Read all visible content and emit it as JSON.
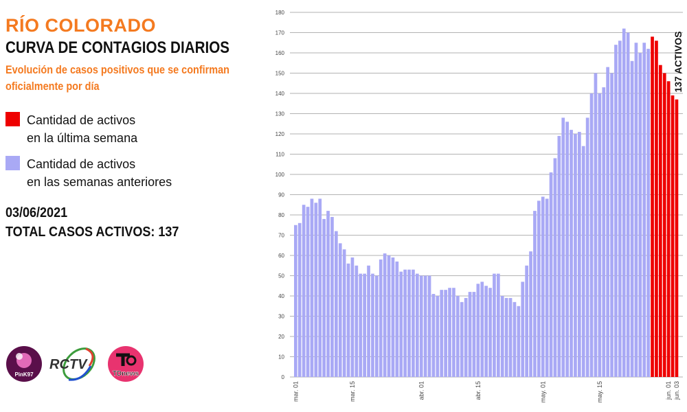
{
  "header": {
    "region": "RÍO COLORADO",
    "title": "CURVA DE CONTAGIOS DIARIOS",
    "subtitle": "Evolución de casos positivos que se confirman oficialmente por día"
  },
  "legend": [
    {
      "line1": "Cantidad de activos",
      "line2": "en la última semana",
      "color": "#ee0000"
    },
    {
      "line1": "Cantidad de activos",
      "line2": "en las semanas anteriores",
      "color": "#a9a9f5"
    }
  ],
  "info": {
    "date": "03/06/2021",
    "total": "TOTAL CASOS ACTIVOS: 137"
  },
  "logos": [
    {
      "name": "Pink97",
      "text": "PinK97"
    },
    {
      "name": "RCTV",
      "text": "RCTV"
    },
    {
      "name": "TDnews",
      "text": "TDnews"
    }
  ],
  "chart_data": {
    "type": "bar",
    "title": "",
    "xlabel": "",
    "ylabel": "",
    "ylim": [
      0,
      180
    ],
    "yticks": [
      0,
      10,
      20,
      30,
      40,
      50,
      60,
      70,
      80,
      90,
      100,
      110,
      120,
      130,
      140,
      150,
      160,
      170,
      180
    ],
    "grid": true,
    "x_start": "mar. 01",
    "x_end": "jun. 03",
    "xticks": [
      {
        "index": 0,
        "label": "mar. 01"
      },
      {
        "index": 14,
        "label": "mar. 15"
      },
      {
        "index": 31,
        "label": "abr. 01"
      },
      {
        "index": 45,
        "label": "abr. 15"
      },
      {
        "index": 61,
        "label": "may. 01"
      },
      {
        "index": 75,
        "label": "may. 15"
      },
      {
        "index": 92,
        "label": "jun. 01"
      },
      {
        "index": 94,
        "label": "jun. 03"
      }
    ],
    "values": [
      75,
      76,
      85,
      84,
      88,
      86,
      88,
      78,
      82,
      79,
      72,
      66,
      63,
      56,
      59,
      55,
      51,
      51,
      55,
      51,
      50,
      58,
      61,
      60,
      59,
      57,
      52,
      53,
      53,
      53,
      51,
      50,
      50,
      50,
      41,
      40,
      43,
      43,
      44,
      44,
      40,
      37,
      39,
      42,
      42,
      46,
      47,
      45,
      44,
      51,
      51,
      40,
      39,
      39,
      37,
      35,
      47,
      55,
      62,
      82,
      87,
      89,
      88,
      101,
      108,
      119,
      128,
      126,
      122,
      120,
      121,
      114,
      128,
      140,
      150,
      140,
      143,
      153,
      150,
      164,
      166,
      172,
      170,
      156,
      165,
      160,
      165,
      162,
      168,
      166,
      154,
      150,
      146,
      139,
      137
    ],
    "highlight_last": 7,
    "colors": {
      "previous": "#a9a9f5",
      "last_week": "#ee0000",
      "grid": "#999999"
    },
    "annotation": "137 ACTIVOS"
  }
}
